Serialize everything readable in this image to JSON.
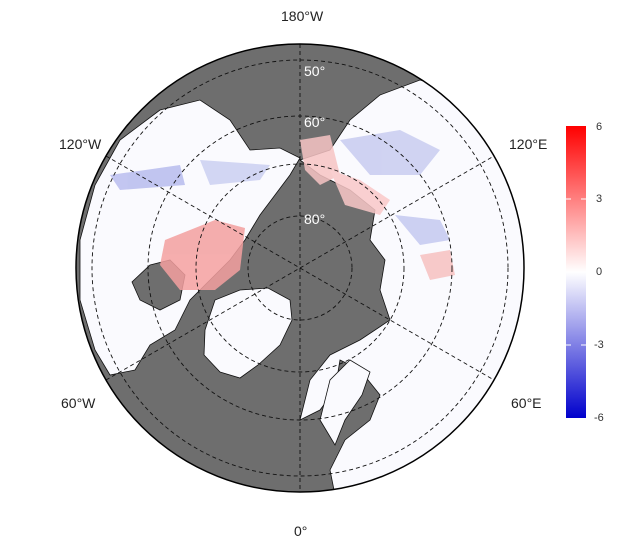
{
  "map": {
    "projection": "north-polar-stereographic",
    "ocean_color": "#6e6e6e",
    "land_color": "#fafafe",
    "longitude_labels": {
      "top": "180°W",
      "bottom": "0°",
      "upper_left": "120°W",
      "upper_right": "120°E",
      "lower_left": "60°W",
      "lower_right": "60°E"
    },
    "latitude_labels": [
      "50°",
      "60°",
      "80°"
    ],
    "grid": "dashed"
  },
  "colorbar": {
    "ticks": [
      "6",
      "3",
      "0",
      "-3",
      "-6"
    ],
    "min": -6,
    "max": 6,
    "color_high": "#ff0000",
    "color_mid": "#ffffff",
    "color_low": "#0000cc"
  }
}
